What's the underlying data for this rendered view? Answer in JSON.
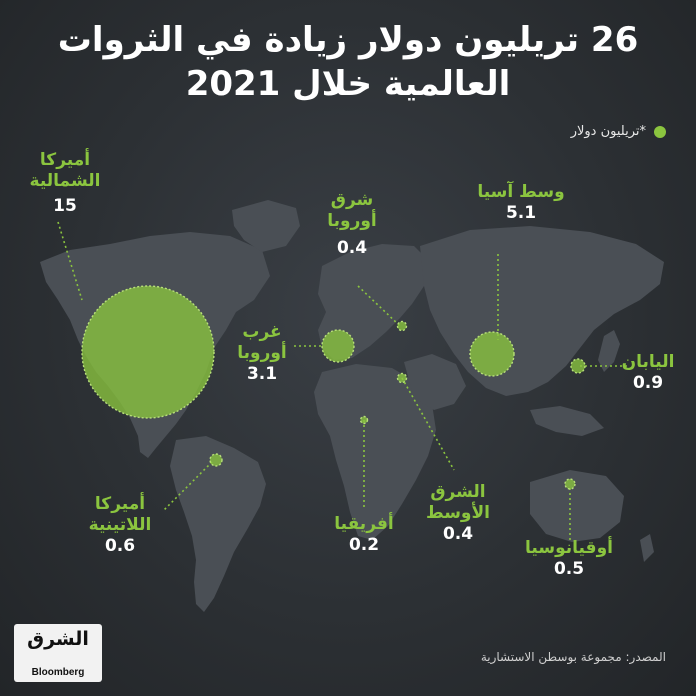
{
  "title": "26 تريليون دولار زيادة في الثروات العالمية خلال 2021",
  "legend": "*تريليون دولار",
  "source": "المصدر: مجموعة بوسطن الاستشارية",
  "logo": {
    "arabic": "الشرق",
    "english": "Bloomberg"
  },
  "colors": {
    "accent": "#8bc53f",
    "land": "#4a4f55",
    "background": "#2b2f33"
  },
  "regions": [
    {
      "id": "north-america",
      "name": "أميركا الشمالية",
      "value": "15"
    },
    {
      "id": "latin-america",
      "name": "أميركا اللاتينية",
      "value": "0.6"
    },
    {
      "id": "western-europe",
      "name": "غرب أوروبا",
      "value": "3.1"
    },
    {
      "id": "eastern-europe",
      "name": "شرق أوروبا",
      "value": "0.4"
    },
    {
      "id": "africa",
      "name": "أفريقيا",
      "value": "0.2"
    },
    {
      "id": "middle-east",
      "name": "الشرق الأوسط",
      "value": "0.4"
    },
    {
      "id": "central-asia",
      "name": "وسط آسيا",
      "value": "5.1"
    },
    {
      "id": "japan",
      "name": "اليابان",
      "value": "0.9"
    },
    {
      "id": "oceania",
      "name": "أوقيانوسيا",
      "value": "0.5"
    }
  ]
}
